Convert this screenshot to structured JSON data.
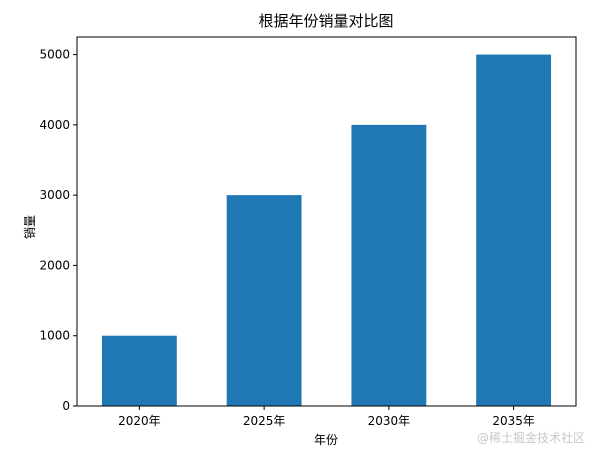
{
  "chart_data": {
    "type": "bar",
    "title": "根据年份销量对比图",
    "xlabel": "年份",
    "ylabel": "销量",
    "categories": [
      "2020年",
      "2025年",
      "2030年",
      "2035年"
    ],
    "values": [
      1000,
      3000,
      4000,
      5000
    ],
    "ylim": [
      0,
      5250
    ],
    "yticks": [
      0,
      1000,
      2000,
      3000,
      4000,
      5000
    ],
    "grid": false,
    "colors": {
      "bar": "#1f77b4",
      "axis": "#000000",
      "background": "#ffffff"
    }
  },
  "watermark": "@稀土掘金技术社区"
}
